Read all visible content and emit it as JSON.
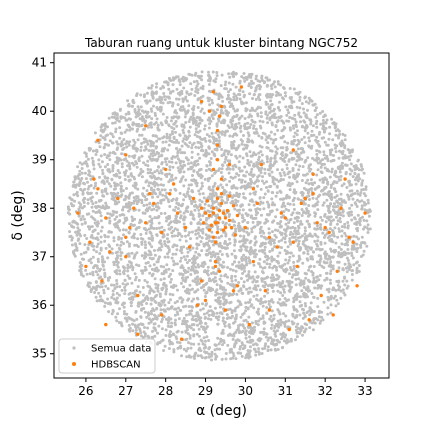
{
  "chart_data": {
    "type": "scatter",
    "title": "Taburan ruang untuk kluster bintang NGC752",
    "xlabel": "α (deg)",
    "ylabel": "δ (deg)",
    "xlim": [
      25.2,
      33.6
    ],
    "ylim": [
      34.5,
      41.2
    ],
    "x_ticks": [
      26,
      27,
      28,
      29,
      30,
      31,
      32,
      33
    ],
    "y_ticks": [
      35,
      36,
      37,
      38,
      39,
      40,
      41
    ],
    "x_tick_labels": [
      "26",
      "27",
      "28",
      "29",
      "30",
      "31",
      "32",
      "33"
    ],
    "y_tick_labels": [
      "35",
      "36",
      "37",
      "38",
      "39",
      "40",
      "41"
    ],
    "grid": false,
    "legend": {
      "placement": "lower-left",
      "entries": [
        "Semua data",
        "HDBSCAN"
      ]
    },
    "series": [
      {
        "name": "Semua data",
        "color": "#bfbfbf",
        "region": {
          "shape": "circle-on-sky",
          "center_ra": 29.35,
          "center_dec": 37.85,
          "radius_deg": 3.0
        },
        "points_note": "dense uniform field of several thousand stars filling the region"
      },
      {
        "name": "HDBSCAN",
        "color": "#ff7f0e",
        "x": [
          29.35,
          29.25,
          29.45,
          29.1,
          29.6,
          29.2,
          29.5,
          29.0,
          29.7,
          29.3,
          29.4,
          29.15,
          29.55,
          28.95,
          29.8,
          29.3,
          29.2,
          29.45,
          29.05,
          29.65,
          29.35,
          29.5,
          29.25,
          28.9,
          29.75,
          29.4,
          29.1,
          29.6,
          29.3,
          29.2,
          28.7,
          28.5,
          28.3,
          28.1,
          27.9,
          27.7,
          27.5,
          27.2,
          27.0,
          26.8,
          26.5,
          26.3,
          26.1,
          25.8,
          28.6,
          28.2,
          27.6,
          27.1,
          26.6,
          26.2,
          30.0,
          30.3,
          30.6,
          30.9,
          31.2,
          31.5,
          31.8,
          32.1,
          32.4,
          32.7,
          33.0,
          30.2,
          30.8,
          31.4,
          32.0,
          32.6,
          31.0,
          31.7,
          29.3,
          29.2,
          29.4,
          29.3,
          29.25,
          29.35,
          28.9,
          29.7,
          29.0,
          29.5,
          29.3,
          29.4,
          29.2,
          29.35,
          29.3,
          29.1,
          29.6,
          29.25,
          26.0,
          26.4,
          27.0,
          27.3,
          28.8,
          29.8,
          30.2,
          30.5,
          31.3,
          31.9,
          32.3,
          32.8,
          26.5,
          27.3,
          27.9,
          28.4,
          30.1,
          30.6,
          31.1,
          31.6,
          32.2,
          28.0,
          30.4,
          27.0,
          31.7,
          26.3,
          32.5,
          28.9,
          29.9,
          27.5,
          31.2
        ],
        "y": [
          37.8,
          37.7,
          37.9,
          37.85,
          37.75,
          38.0,
          37.6,
          37.9,
          38.05,
          37.5,
          38.1,
          37.65,
          37.95,
          37.7,
          37.85,
          38.2,
          37.4,
          37.55,
          38.15,
          37.6,
          37.95,
          37.8,
          37.3,
          38.0,
          37.45,
          38.3,
          37.55,
          38.25,
          37.7,
          37.9,
          38.2,
          37.6,
          37.9,
          38.3,
          37.5,
          38.1,
          37.7,
          38.0,
          37.4,
          38.2,
          37.8,
          38.4,
          37.3,
          37.9,
          37.2,
          38.5,
          38.3,
          37.6,
          37.1,
          38.6,
          37.6,
          38.1,
          37.4,
          37.9,
          37.3,
          38.2,
          37.7,
          37.5,
          38.0,
          37.3,
          37.9,
          38.4,
          37.2,
          38.1,
          37.6,
          37.4,
          37.8,
          38.3,
          39.0,
          38.8,
          38.6,
          38.4,
          36.9,
          36.7,
          36.5,
          36.3,
          36.1,
          35.9,
          39.6,
          40.1,
          40.4,
          39.9,
          39.3,
          40.0,
          38.9,
          36.8,
          36.8,
          36.5,
          37.0,
          36.2,
          36.0,
          36.4,
          36.9,
          36.3,
          36.8,
          36.2,
          36.7,
          36.4,
          35.6,
          35.4,
          35.8,
          35.3,
          35.6,
          35.9,
          35.5,
          35.7,
          35.8,
          38.8,
          38.9,
          39.1,
          38.7,
          39.4,
          38.6,
          40.2,
          40.5,
          39.7,
          39.2
        ]
      }
    ]
  }
}
